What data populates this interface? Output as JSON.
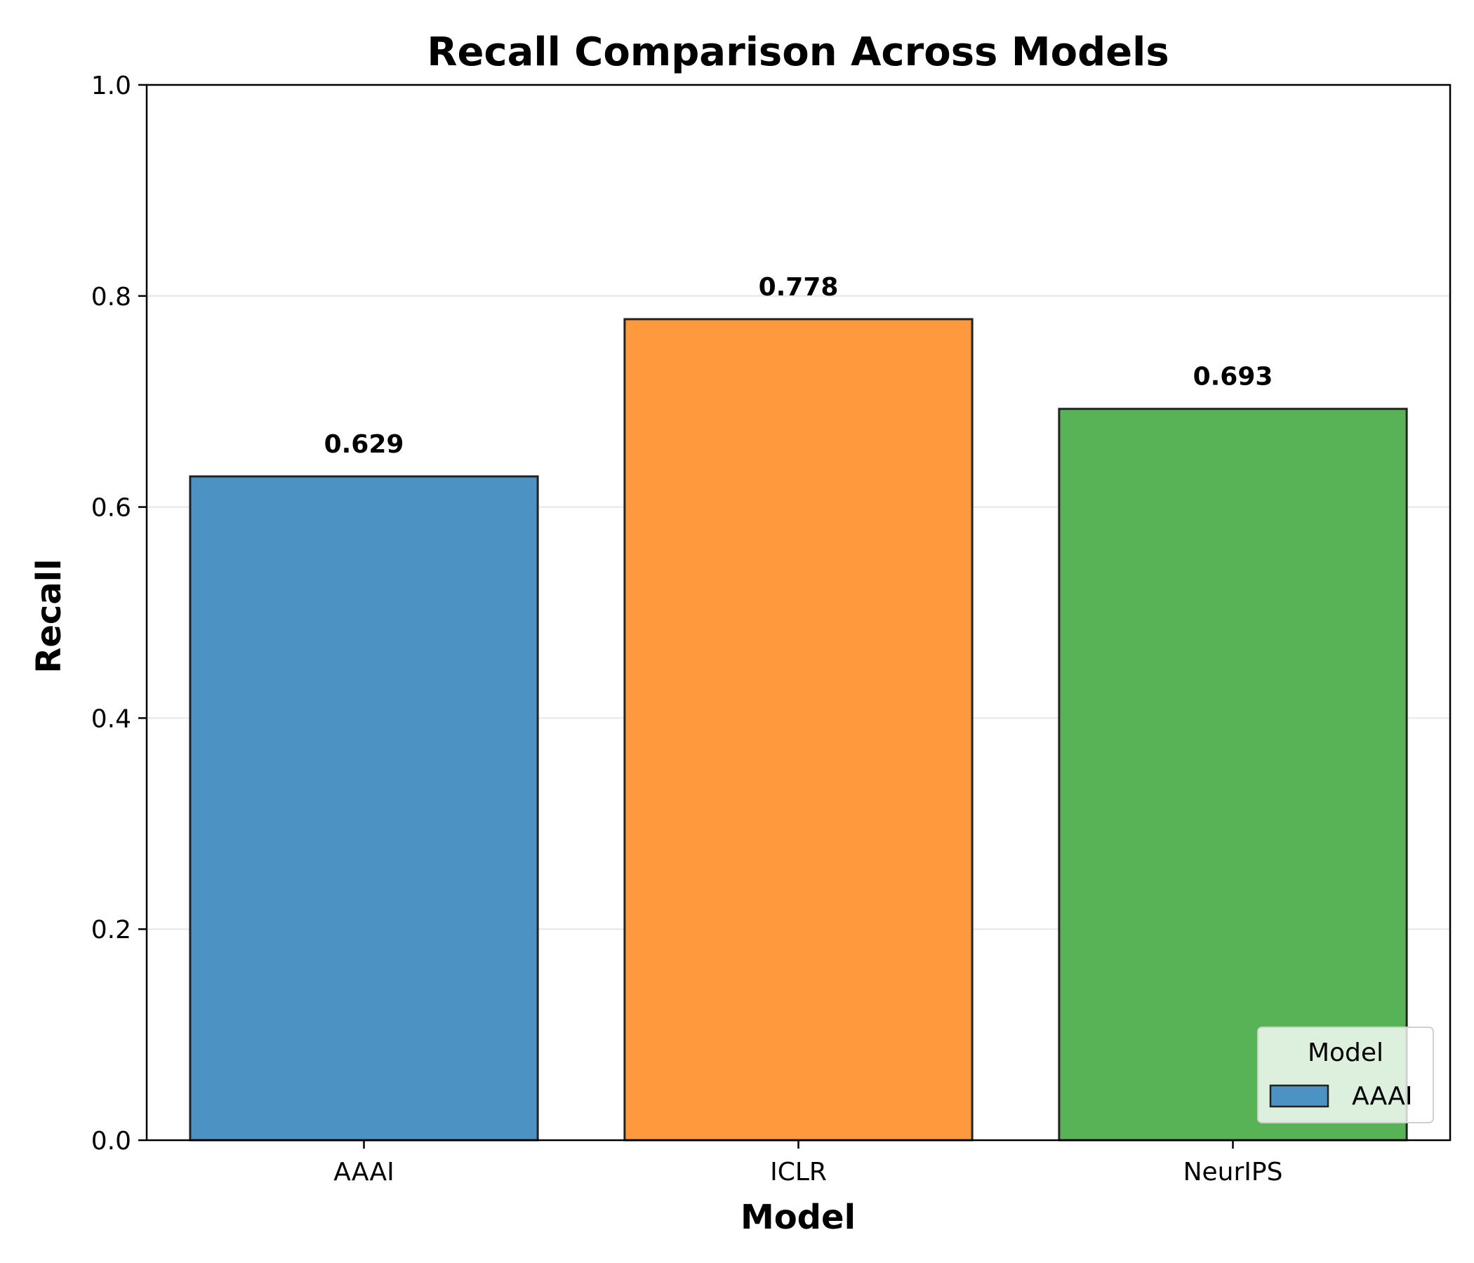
{
  "chart_data": {
    "type": "bar",
    "title": "Recall Comparison Across Models",
    "xlabel": "Model",
    "ylabel": "Recall",
    "categories": [
      "AAAI",
      "ICLR",
      "NeurIPS"
    ],
    "values": [
      0.629,
      0.778,
      0.693
    ],
    "value_labels": [
      "0.629",
      "0.778",
      "0.693"
    ],
    "colors": [
      "#4c92c3",
      "#ff993e",
      "#57b356"
    ],
    "edge_color": "#222222",
    "ylim": [
      0,
      1.0
    ],
    "yticks": [
      0.0,
      0.2,
      0.4,
      0.6,
      0.8,
      1.0
    ],
    "ytick_labels": [
      "0.0",
      "0.2",
      "0.4",
      "0.6",
      "0.8",
      "1.0"
    ],
    "grid": "horizontal",
    "legend": {
      "title": "Model",
      "placement": "lower-right",
      "entries": [
        {
          "label": "AAAI",
          "color": "#4c92c3"
        }
      ]
    }
  }
}
